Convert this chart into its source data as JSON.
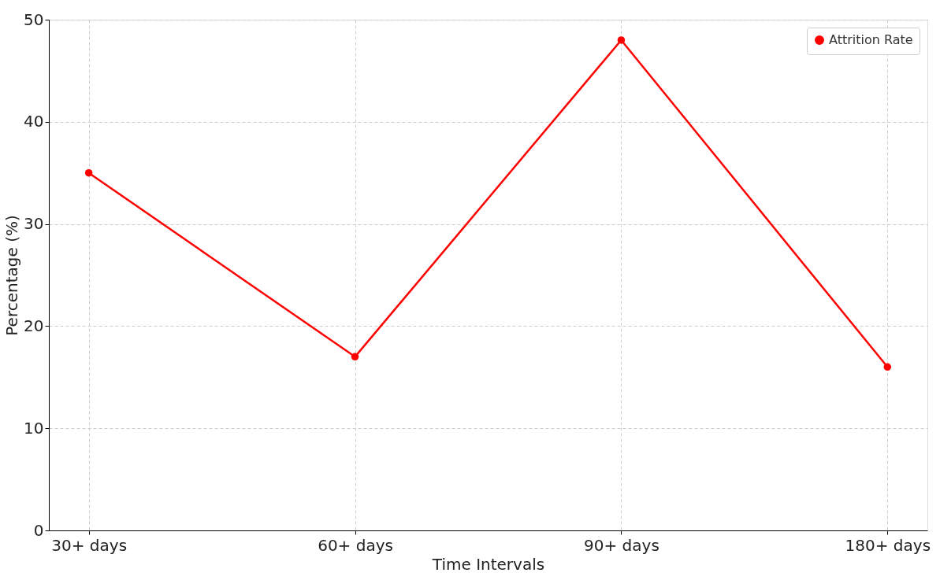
{
  "chart_data": {
    "type": "line",
    "xlabel": "Time Intervals",
    "ylabel": "Percentage (%)",
    "categories": [
      "30+ days",
      "60+ days",
      "90+ days",
      "180+ days"
    ],
    "series": [
      {
        "name": "Attrition Rate",
        "color": "#ff0000",
        "values": [
          35,
          17,
          48,
          16
        ]
      }
    ],
    "ylim": [
      0,
      50
    ],
    "yticks": [
      0,
      10,
      20,
      30,
      40,
      50
    ],
    "grid": true,
    "legend": "top right",
    "marker": "circle",
    "line_style": "solid"
  }
}
